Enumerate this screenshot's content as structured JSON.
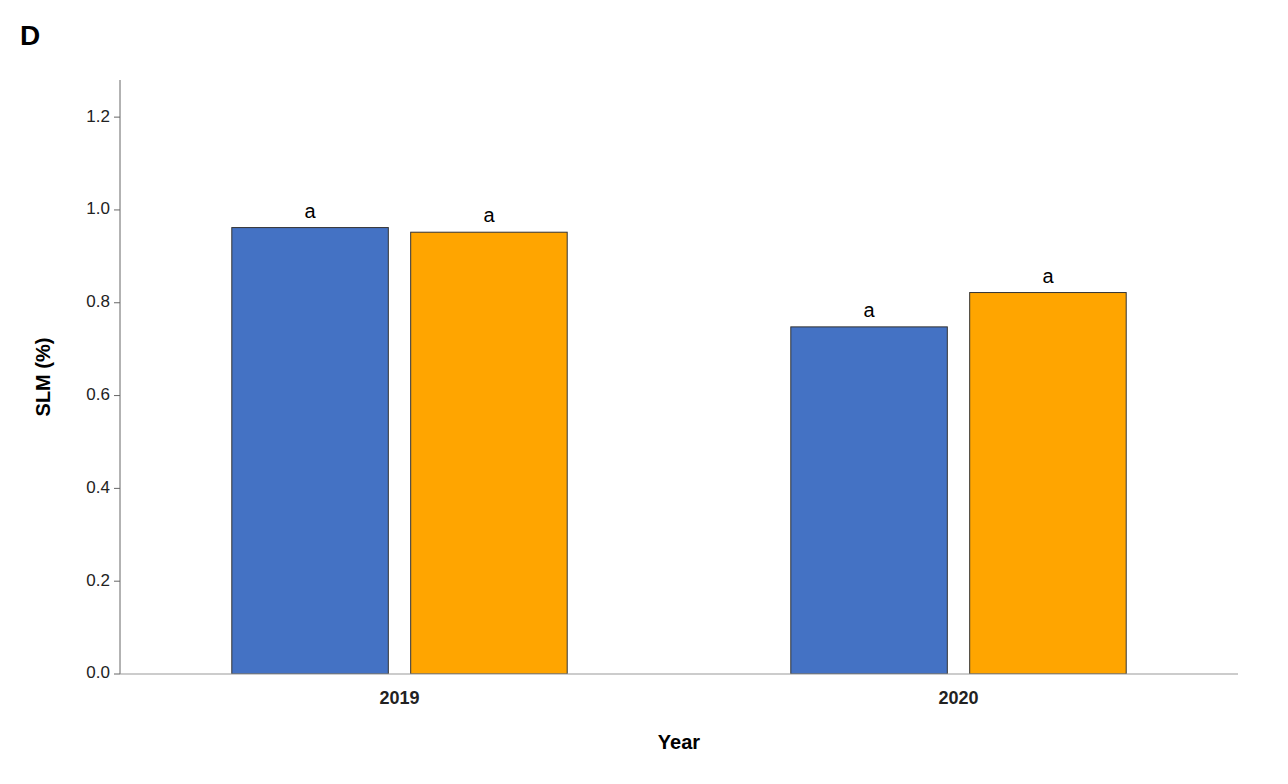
{
  "chart_data": {
    "type": "bar",
    "title": "D",
    "x_label": "Year",
    "y_label": "SLM (%)",
    "categories": [
      "2019",
      "2020"
    ],
    "series": [
      {
        "color": "#4472C4",
        "values": [
          0.962,
          0.748
        ],
        "annotations": [
          "a",
          "a"
        ]
      },
      {
        "color": "#FFA500",
        "values": [
          0.952,
          0.822
        ],
        "annotations": [
          "a",
          "a"
        ]
      }
    ],
    "ylim": [
      0,
      1.28
    ],
    "yticks": [
      {
        "value": 0.0,
        "label": "0.0"
      },
      0.2,
      0.4,
      0.6,
      0.8,
      {
        "value": 1.0,
        "label": "1.0"
      },
      1.2
    ],
    "grid": false
  }
}
